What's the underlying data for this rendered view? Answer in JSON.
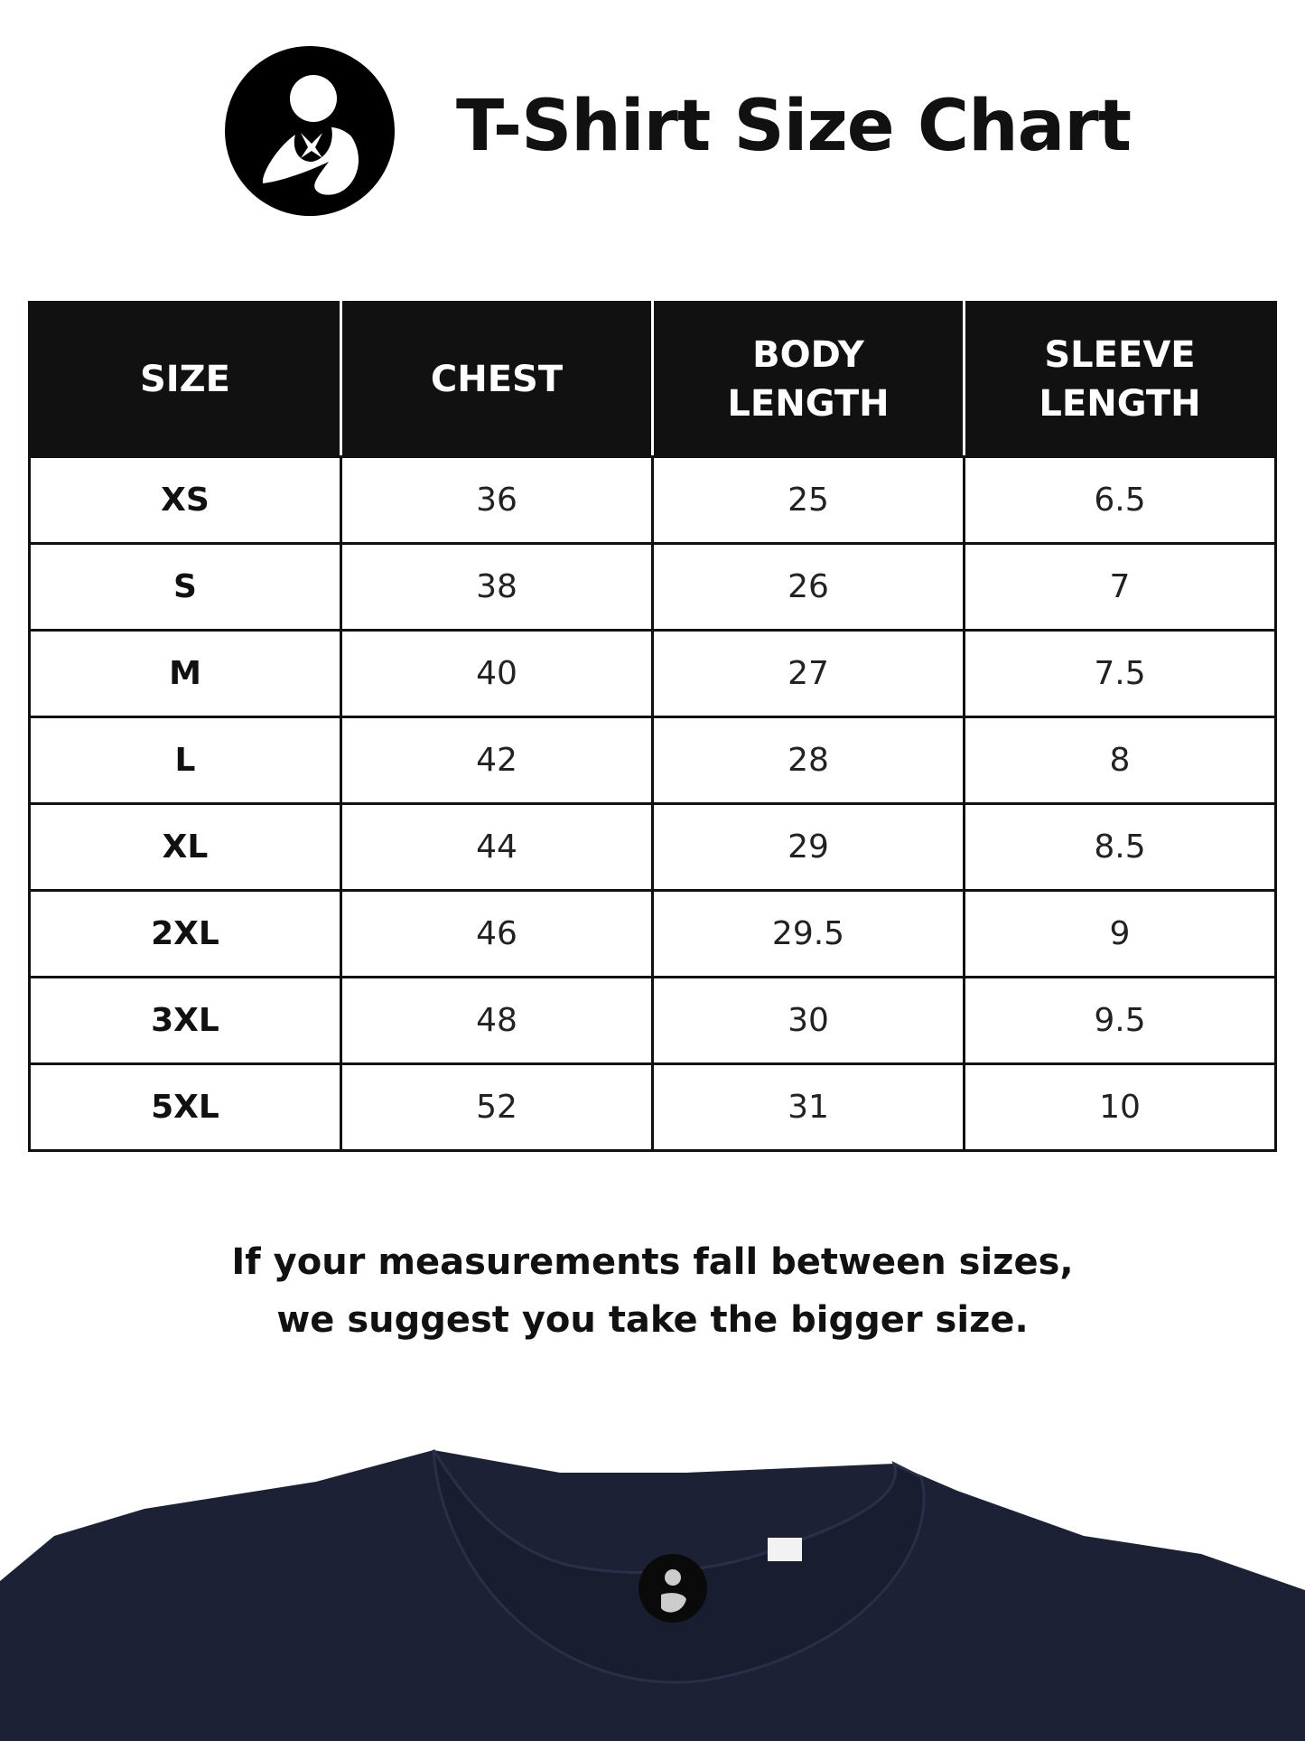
{
  "header": {
    "title": "T-Shirt Size Chart",
    "logo": "mother-and-child-logo"
  },
  "table": {
    "columns": [
      "SIZE",
      "CHEST",
      "BODY\nLENGTH",
      "SLEEVE\nLENGTH"
    ],
    "rows": [
      [
        "XS",
        "36",
        "25",
        "6.5"
      ],
      [
        "S",
        "38",
        "26",
        "7"
      ],
      [
        "M",
        "40",
        "27",
        "7.5"
      ],
      [
        "L",
        "42",
        "28",
        "8"
      ],
      [
        "XL",
        "44",
        "29",
        "8.5"
      ],
      [
        "2XL",
        "46",
        "29.5",
        "9"
      ],
      [
        "3XL",
        "48",
        "30",
        "9.5"
      ],
      [
        "5XL",
        "52",
        "31",
        "10"
      ]
    ]
  },
  "note": {
    "line1": "If your measurements fall between sizes,",
    "line2": "we suggest you take the bigger size."
  },
  "colors": {
    "header_bg": "#111111",
    "shirt": "#1d2136"
  }
}
